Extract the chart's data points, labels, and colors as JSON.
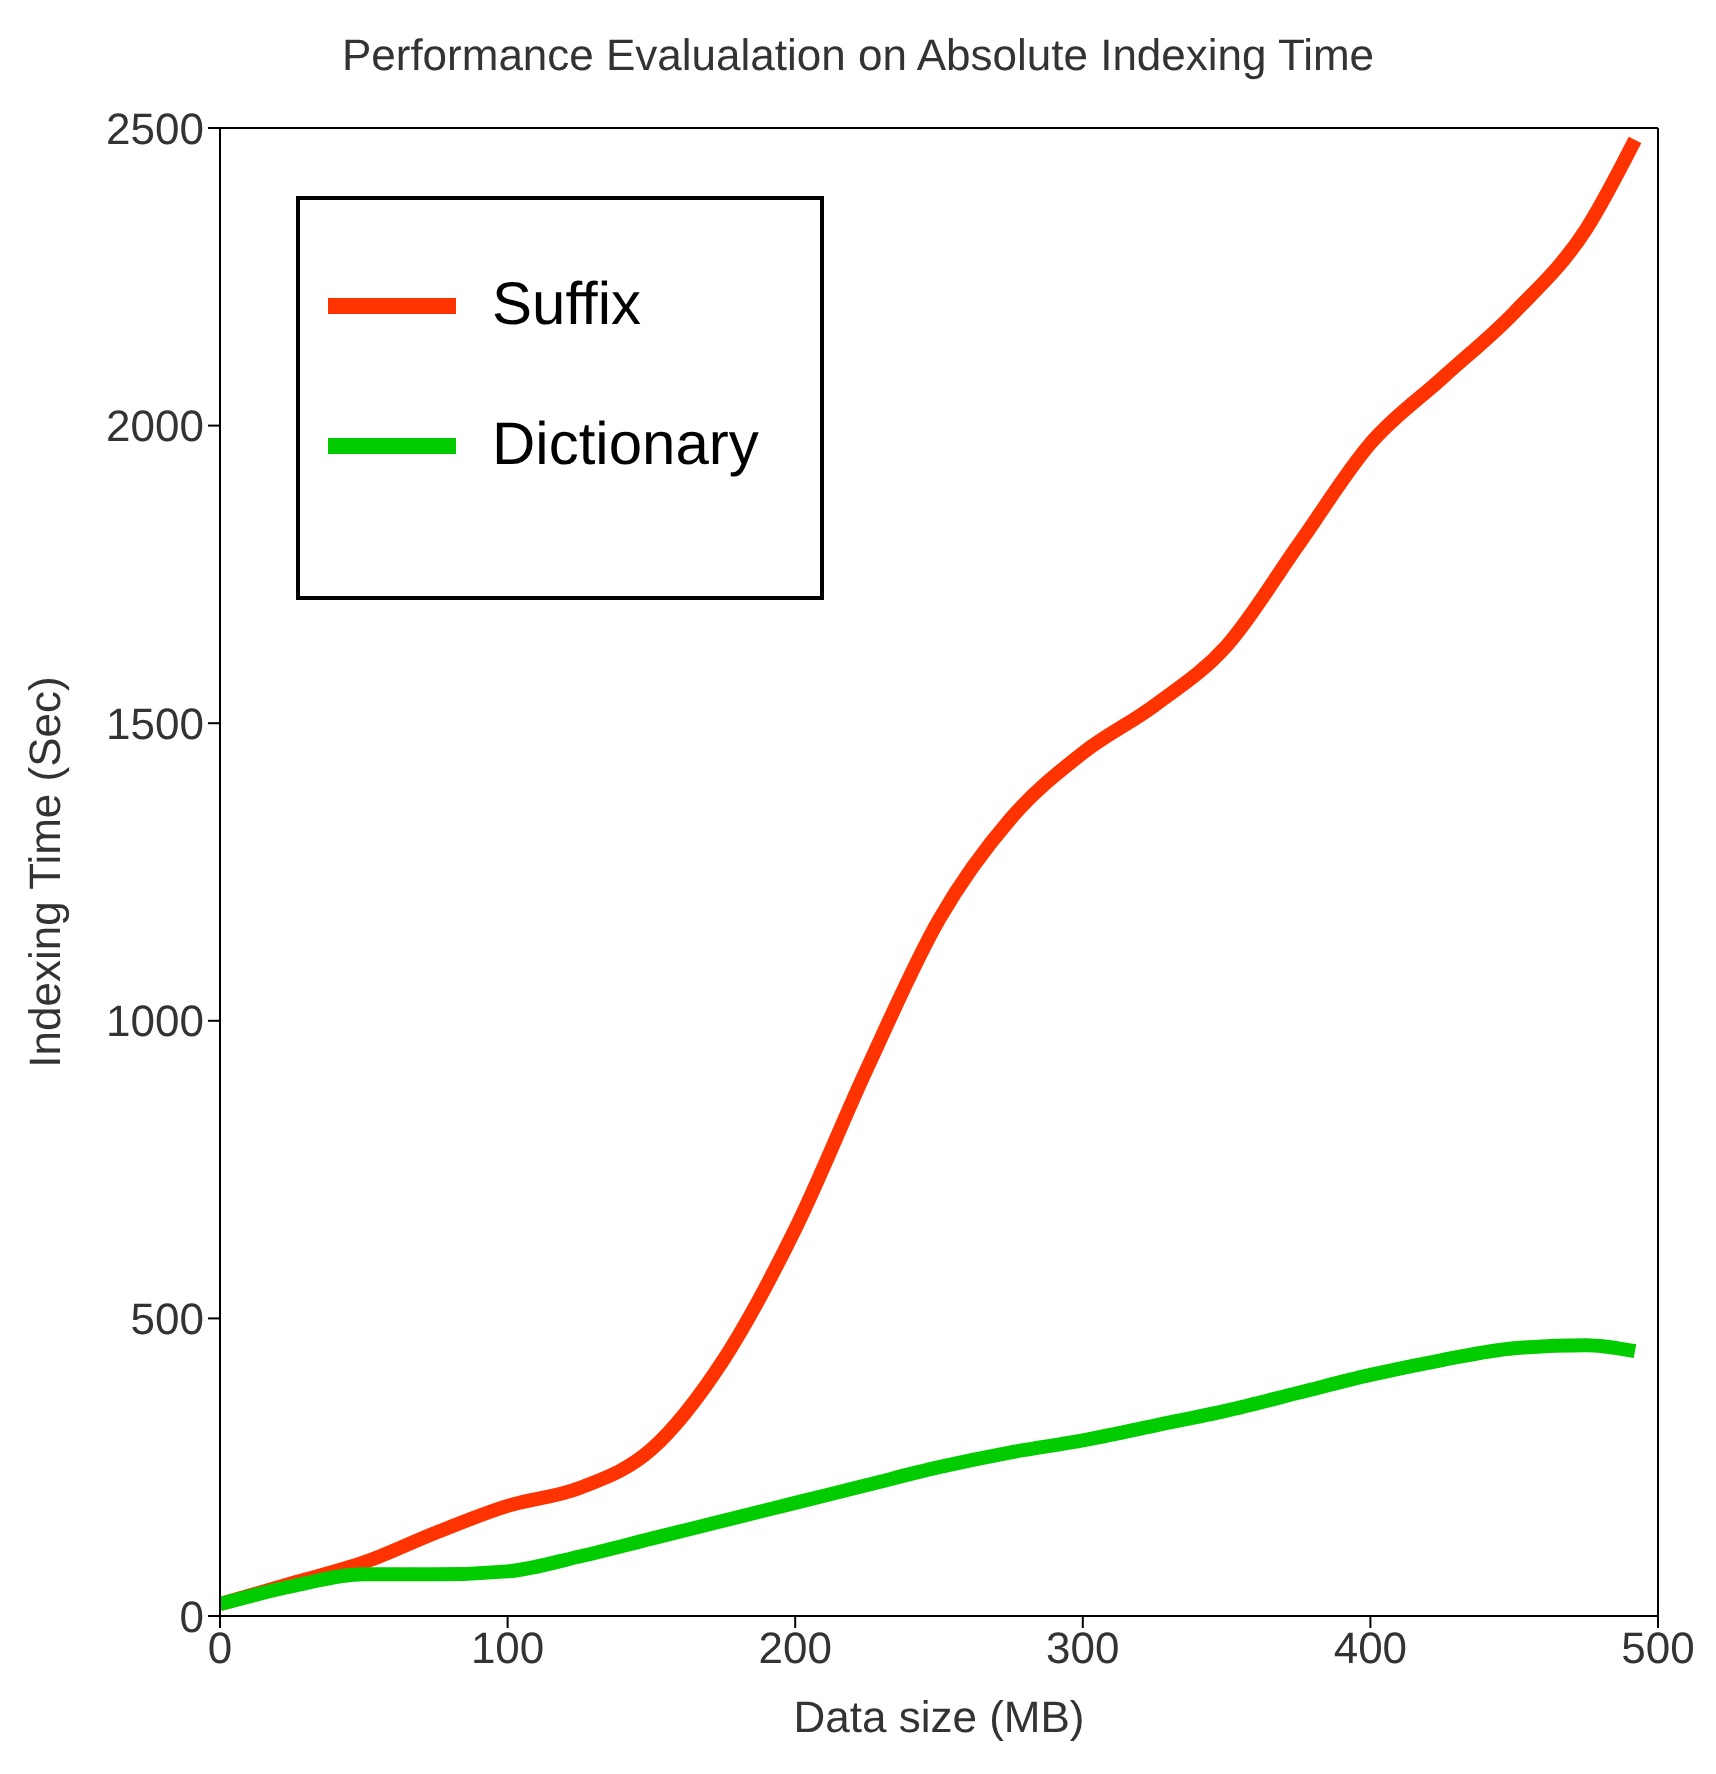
{
  "chart_data": {
    "type": "line",
    "title": "Performance Evalualation on Absolute Indexing Time",
    "xlabel": "Data size (MB)",
    "ylabel": "Indexing Time  (Sec)",
    "xlim": [
      0,
      500
    ],
    "xticks": [
      0,
      100,
      200,
      300,
      400,
      500
    ],
    "ylim": [
      0,
      2500
    ],
    "yticks": [
      0,
      500,
      1000,
      1500,
      2000,
      2500
    ],
    "grid": false,
    "legend": "top left",
    "series": [
      {
        "name": "Suffix",
        "color": "#ff3300",
        "x": [
          0,
          25,
          50,
          75,
          100,
          125,
          150,
          175,
          200,
          225,
          250,
          275,
          300,
          325,
          350,
          375,
          400,
          425,
          450,
          475,
          492
        ],
        "values": [
          20,
          55,
          90,
          140,
          185,
          215,
          280,
          430,
          650,
          920,
          1170,
          1340,
          1450,
          1530,
          1630,
          1800,
          1970,
          2080,
          2190,
          2330,
          2480
        ]
      },
      {
        "name": "Dictionary",
        "color": "#00cc00",
        "x": [
          0,
          25,
          50,
          75,
          100,
          125,
          150,
          175,
          200,
          225,
          250,
          275,
          300,
          325,
          350,
          375,
          400,
          425,
          450,
          475,
          492
        ],
        "values": [
          20,
          50,
          70,
          70,
          75,
          100,
          130,
          160,
          190,
          220,
          250,
          275,
          295,
          320,
          345,
          375,
          405,
          430,
          450,
          455,
          445
        ]
      }
    ]
  }
}
